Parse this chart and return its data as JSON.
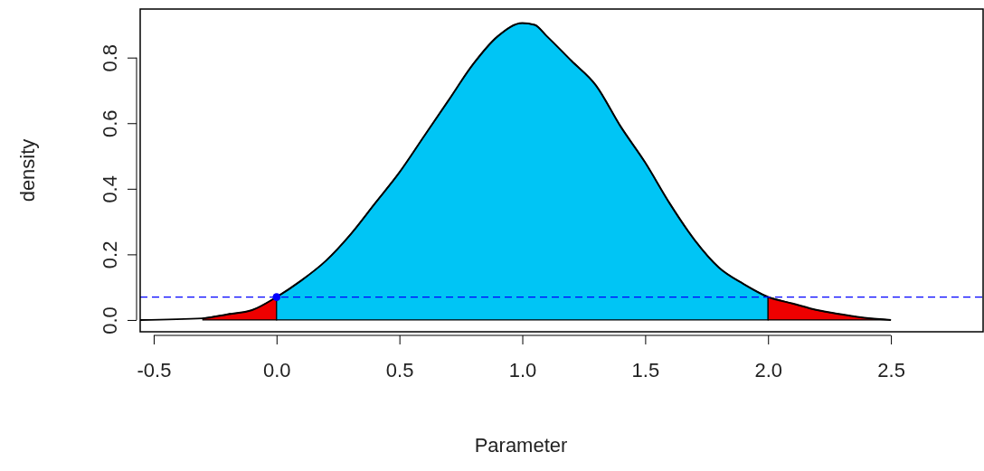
{
  "chart_data": {
    "type": "area",
    "xlabel": "Parameter",
    "ylabel": "density",
    "xlim": [
      -0.555,
      2.875
    ],
    "ylim": [
      -0.036,
      0.948
    ],
    "xticks": [
      {
        "value": -0.5,
        "label": "-0.5"
      },
      {
        "value": 0,
        "label": "0.0"
      },
      {
        "value": 0.5,
        "label": "0.5"
      },
      {
        "value": 1,
        "label": "1.0"
      },
      {
        "value": 1.5,
        "label": "1.5"
      },
      {
        "value": 2,
        "label": "2.0"
      },
      {
        "value": 2.5,
        "label": "2.5"
      }
    ],
    "yticks": [
      {
        "value": 0,
        "label": "0.0"
      },
      {
        "value": 0.2,
        "label": "0.2"
      },
      {
        "value": 0.4,
        "label": "0.4"
      },
      {
        "value": 0.6,
        "label": "0.6"
      },
      {
        "value": 0.8,
        "label": "0.8"
      }
    ],
    "grid": false,
    "series": [
      {
        "color": "#ee0000",
        "x": [
          -0.3,
          -0.2,
          -0.1,
          0
        ],
        "values": [
          0.005,
          0.017,
          0.03,
          0.07
        ]
      },
      {
        "color": "#00c5f5",
        "x": [
          0,
          0.1,
          0.2,
          0.3,
          0.4,
          0.5,
          0.6,
          0.7,
          0.8,
          0.9,
          1.0,
          1.05,
          1.1,
          1.2,
          1.3,
          1.4,
          1.5,
          1.6,
          1.7,
          1.8,
          1.9,
          2.0
        ],
        "values": [
          0.07,
          0.12,
          0.18,
          0.26,
          0.355,
          0.45,
          0.56,
          0.67,
          0.78,
          0.865,
          0.905,
          0.9,
          0.865,
          0.79,
          0.715,
          0.59,
          0.48,
          0.355,
          0.245,
          0.16,
          0.11,
          0.07
        ]
      },
      {
        "color": "#ee0000",
        "x": [
          2.0,
          2.1,
          2.2,
          2.3,
          2.4,
          2.5
        ],
        "values": [
          0.07,
          0.05,
          0.03,
          0.017,
          0.006,
          0
        ]
      },
      {
        "type": "line",
        "color": "#000000",
        "line_style": "solid",
        "marker": "none",
        "x": [
          -0.555,
          -0.3,
          -0.2,
          -0.1,
          0,
          0.1,
          0.2,
          0.3,
          0.4,
          0.5,
          0.6,
          0.7,
          0.8,
          0.9,
          1.0,
          1.05,
          1.1,
          1.2,
          1.3,
          1.4,
          1.5,
          1.6,
          1.7,
          1.8,
          1.9,
          2.0,
          2.1,
          2.2,
          2.3,
          2.4,
          2.5
        ],
        "values": [
          0,
          0.005,
          0.017,
          0.03,
          0.07,
          0.12,
          0.18,
          0.26,
          0.355,
          0.45,
          0.56,
          0.67,
          0.78,
          0.865,
          0.905,
          0.9,
          0.865,
          0.79,
          0.715,
          0.59,
          0.48,
          0.355,
          0.245,
          0.16,
          0.11,
          0.07,
          0.05,
          0.03,
          0.017,
          0.006,
          0
        ]
      },
      {
        "type": "scatter",
        "color": "#0000ff",
        "marker": "circle",
        "x": [
          0
        ],
        "values": [
          0.07
        ]
      }
    ],
    "ref_lines": [
      {
        "axis": "y",
        "value": 0.07,
        "color": "#0000ff",
        "line_style": "dashed"
      }
    ]
  }
}
